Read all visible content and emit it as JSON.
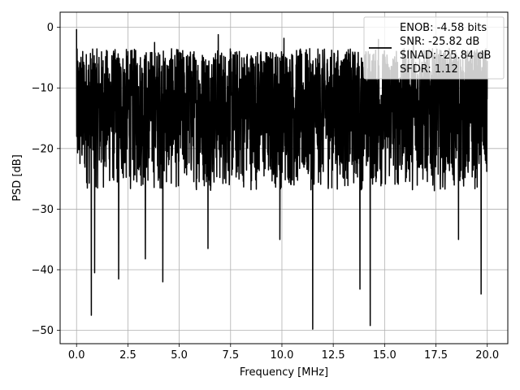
{
  "chart_data": {
    "type": "line",
    "xlabel": "Frequency [MHz]",
    "ylabel": "PSD [dB]",
    "xlim": [
      -0.8,
      21.0
    ],
    "ylim": [
      -52.2,
      2.5
    ],
    "grid": true,
    "x_ticks": [
      0.0,
      2.5,
      5.0,
      7.5,
      10.0,
      12.5,
      15.0,
      17.5,
      20.0
    ],
    "x_tick_labels": [
      "0.0",
      "2.5",
      "5.0",
      "7.5",
      "10.0",
      "12.5",
      "15.0",
      "17.5",
      "20.0"
    ],
    "y_ticks": [
      0,
      -10,
      -20,
      -30,
      -40,
      -50
    ],
    "y_tick_labels": [
      "0",
      "−10",
      "−20",
      "−30",
      "−40",
      "−50"
    ],
    "legend_placement": "top-right",
    "legend_entries": [
      {
        "text": "ENOB: -4.58 bits"
      },
      {
        "text": "SNR: -25.82 dB"
      },
      {
        "text": "SINAD: -25.84 dB"
      },
      {
        "text": "SFDR: 1.12"
      }
    ],
    "series": [
      {
        "color": "#000000",
        "x_start": 0.0,
        "x_end": 20.0,
        "n_points": 2400,
        "envelope_upper_db": -3.5,
        "envelope_lower_db": -27.0,
        "peak_points": [
          {
            "x": 0.0,
            "y": -0.3
          },
          {
            "x": 3.8,
            "y": -2.5
          },
          {
            "x": 6.9,
            "y": -1.2
          },
          {
            "x": 10.1,
            "y": -1.8
          },
          {
            "x": 14.7,
            "y": -2.0
          },
          {
            "x": 16.4,
            "y": -1.9
          }
        ],
        "dip_points": [
          {
            "x": 0.72,
            "y": -47.5
          },
          {
            "x": 0.88,
            "y": -40.5
          },
          {
            "x": 2.05,
            "y": -41.5
          },
          {
            "x": 3.35,
            "y": -38.2
          },
          {
            "x": 4.2,
            "y": -42.0
          },
          {
            "x": 6.4,
            "y": -36.5
          },
          {
            "x": 9.9,
            "y": -35.0
          },
          {
            "x": 11.5,
            "y": -49.8
          },
          {
            "x": 13.8,
            "y": -43.2
          },
          {
            "x": 14.3,
            "y": -49.2
          },
          {
            "x": 18.6,
            "y": -35.0
          },
          {
            "x": 19.7,
            "y": -44.0
          }
        ]
      }
    ]
  }
}
